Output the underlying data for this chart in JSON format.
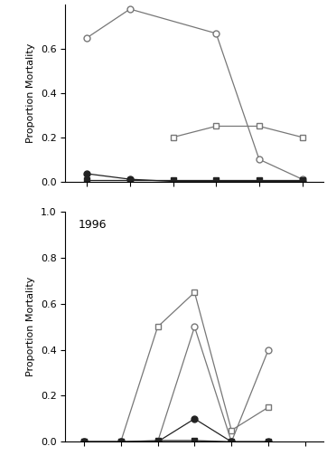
{
  "panel1": {
    "x": [
      1,
      2,
      3,
      4,
      5,
      6
    ],
    "open_circle": [
      0.65,
      0.78,
      null,
      0.67,
      0.1,
      0.01
    ],
    "open_square": [
      null,
      null,
      0.2,
      0.25,
      0.25,
      0.2
    ],
    "filled_circle": [
      0.035,
      0.01,
      0.0,
      0.0,
      0.0,
      0.0
    ],
    "filled_square": [
      0.005,
      0.005,
      0.005,
      0.005,
      0.005,
      0.005
    ]
  },
  "panel2": {
    "label": "1996",
    "x": [
      1,
      2,
      3,
      4,
      5,
      6,
      7
    ],
    "open_circle": [
      0.0,
      0.0,
      0.0,
      0.5,
      0.0,
      0.4,
      null
    ],
    "open_square": [
      0.0,
      0.0,
      0.5,
      0.65,
      0.05,
      0.15,
      null
    ],
    "filled_circle": [
      0.0,
      0.0,
      0.0,
      0.1,
      0.0,
      0.0,
      null
    ],
    "filled_square": [
      0.0,
      0.0,
      0.005,
      0.005,
      0.0,
      0.0,
      null
    ]
  },
  "panel1_ylim": [
    0.0,
    0.8
  ],
  "panel2_ylim": [
    0.0,
    1.0
  ],
  "ylabel": "Proportion Mortality",
  "line_color": "#777777",
  "filled_color": "#222222"
}
